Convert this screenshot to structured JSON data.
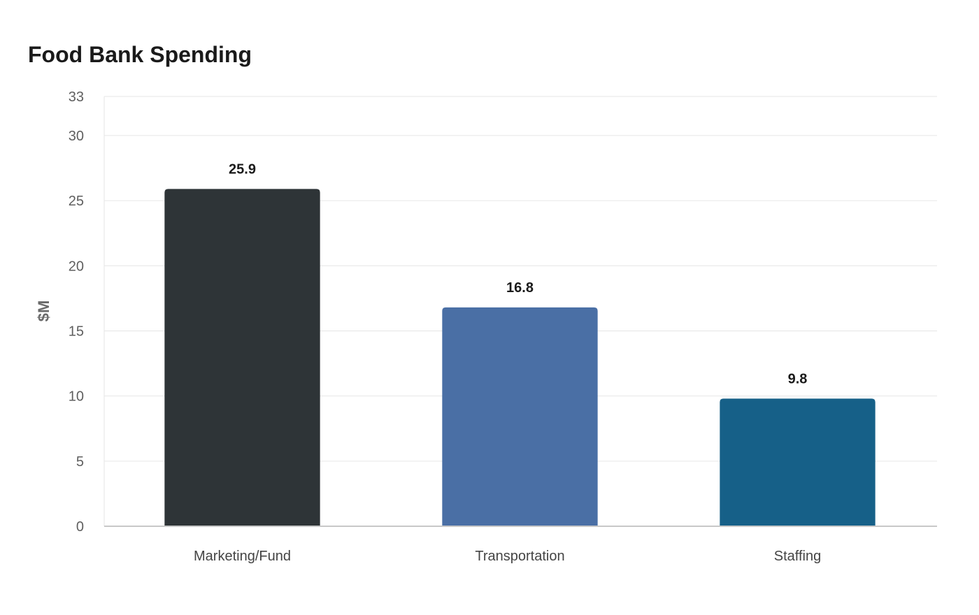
{
  "chart_data": {
    "type": "bar",
    "title": "Food Bank Spending",
    "xlabel": "",
    "ylabel": "$M",
    "categories": [
      "Marketing/Fund",
      "Transportation",
      "Staffing"
    ],
    "values": [
      25.9,
      16.8,
      9.8
    ],
    "value_labels": [
      "25.9",
      "16.8",
      "9.8"
    ],
    "ylim": [
      0,
      33
    ],
    "yticks": [
      0,
      5,
      10,
      15,
      20,
      25,
      30,
      33
    ],
    "grid": true,
    "legend": "none",
    "colors": [
      "#2e3437",
      "#4a6fa5",
      "#166088"
    ]
  }
}
